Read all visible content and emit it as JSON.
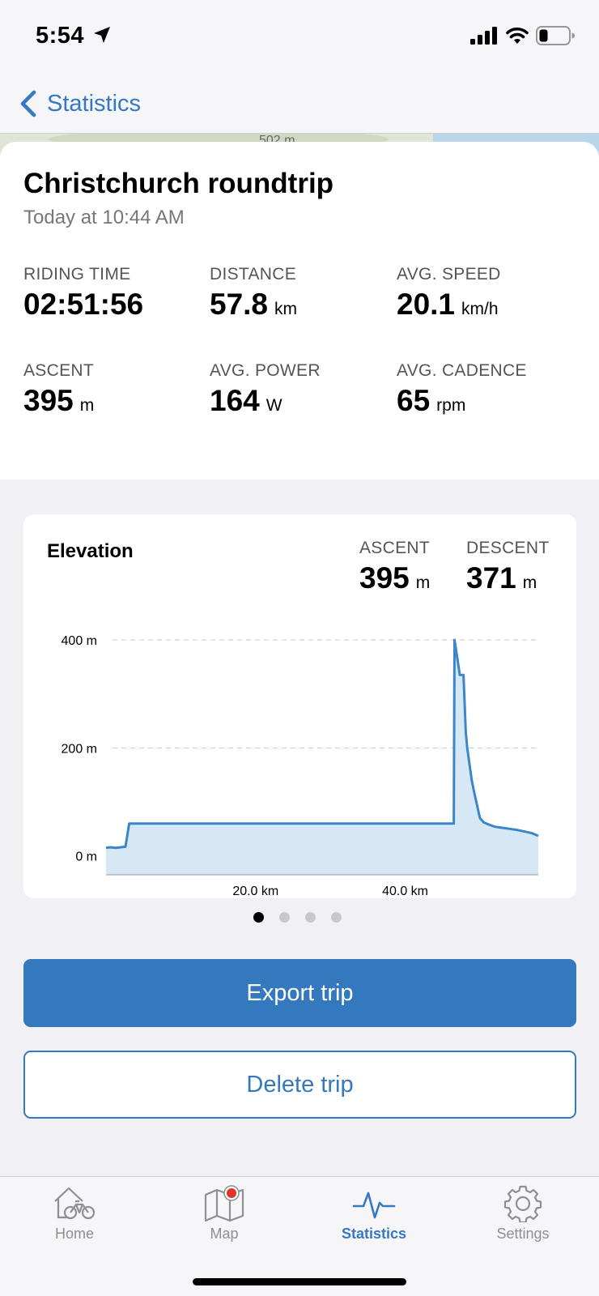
{
  "status_bar": {
    "time": "5:54",
    "icons": [
      "location-arrow-icon",
      "signal-icon",
      "wifi-icon",
      "battery-icon"
    ]
  },
  "nav": {
    "back_label": "Statistics"
  },
  "map_peek": {
    "label": "502 m"
  },
  "trip": {
    "title": "Christchurch roundtrip",
    "date": "Today at 10:44 AM",
    "stats": {
      "riding_time": {
        "label": "RIDING TIME",
        "value": "02:51:56",
        "unit": ""
      },
      "distance": {
        "label": "DISTANCE",
        "value": "57.8",
        "unit": "km"
      },
      "avg_speed": {
        "label": "AVG. SPEED",
        "value": "20.1",
        "unit": "km/h"
      },
      "ascent": {
        "label": "ASCENT",
        "value": "395",
        "unit": "m"
      },
      "avg_power": {
        "label": "AVG. POWER",
        "value": "164",
        "unit": "W"
      },
      "avg_cadence": {
        "label": "AVG. CADENCE",
        "value": "65",
        "unit": "rpm"
      }
    }
  },
  "elevation": {
    "title": "Elevation",
    "ascent": {
      "label": "ASCENT",
      "value": "395",
      "unit": "m"
    },
    "descent": {
      "label": "DESCENT",
      "value": "371",
      "unit": "m"
    }
  },
  "chart_data": {
    "type": "area",
    "title": "Elevation",
    "xlabel": "",
    "ylabel": "",
    "xlim": [
      0,
      57.8
    ],
    "ylim": [
      -35,
      400
    ],
    "x_ticks": [
      {
        "value": 20,
        "label": "20.0 km"
      },
      {
        "value": 40,
        "label": "40.0 km"
      }
    ],
    "y_ticks": [
      {
        "value": 0,
        "label": "0 m"
      },
      {
        "value": 200,
        "label": "200 m"
      },
      {
        "value": 400,
        "label": "400 m"
      }
    ],
    "grid": "horizontal-dashed",
    "line_color": "#3b86c8",
    "fill_color": "#d6e8f6",
    "series": [
      {
        "x": [
          0,
          0.6,
          1.3,
          2.0,
          2.6,
          3.1,
          4.0,
          10,
          20,
          30,
          40,
          46.5,
          46.6,
          46.9,
          47.3,
          47.8,
          48.1,
          48.3,
          48.6,
          48.9,
          49.2,
          49.6,
          50.0,
          50.5,
          51.2,
          52.0,
          53.0,
          54.0,
          55.0,
          56.0,
          57.0,
          57.8
        ],
        "y": [
          15,
          16,
          15,
          16,
          17,
          60,
          60,
          60,
          60,
          60,
          60,
          60,
          400,
          373,
          335,
          335,
          230,
          200,
          170,
          140,
          120,
          95,
          70,
          62,
          58,
          54,
          52,
          50,
          48,
          45,
          42,
          37
        ]
      }
    ]
  },
  "pagination": {
    "count": 4,
    "active": 0
  },
  "actions": {
    "export_label": "Export trip",
    "delete_label": "Delete trip"
  },
  "tabs": [
    {
      "label": "Home",
      "icon": "home-bike-icon",
      "active": false
    },
    {
      "label": "Map",
      "icon": "map-icon",
      "active": false
    },
    {
      "label": "Statistics",
      "icon": "statistics-pulse-icon",
      "active": true
    },
    {
      "label": "Settings",
      "icon": "gear-icon",
      "active": false
    }
  ]
}
